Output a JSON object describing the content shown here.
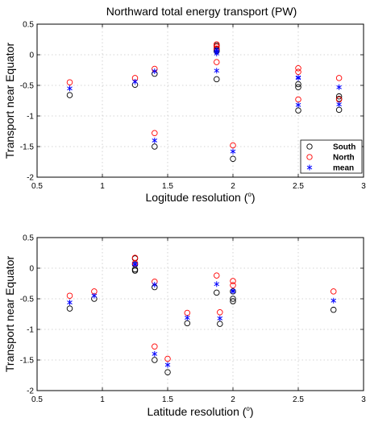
{
  "chart_data": [
    {
      "type": "scatter",
      "title": "Northward total energy transport (PW)",
      "xlabel": "Logitude resolution (",
      "xlabel_sup": "o",
      "xlabel_close": ")",
      "ylabel": "Transport near Equator",
      "xlim": [
        0.5,
        3
      ],
      "ylim": [
        -2,
        0.5
      ],
      "xticks": [
        0.5,
        1,
        1.5,
        2,
        2.5,
        3
      ],
      "yticks": [
        -2,
        -1.5,
        -1,
        -0.5,
        0,
        0.5
      ],
      "grid": true,
      "legend": {
        "position": "bottom-right",
        "entries": [
          "South",
          "North",
          "mean"
        ]
      },
      "series": [
        {
          "name": "South",
          "marker": "circle",
          "color": "#000000",
          "points": [
            [
              0.75,
              -0.66
            ],
            [
              1.25,
              -0.49
            ],
            [
              1.4,
              -0.31
            ],
            [
              1.4,
              -1.5
            ],
            [
              1.875,
              -0.4
            ],
            [
              1.875,
              0.06
            ],
            [
              1.875,
              0.09
            ],
            [
              1.875,
              0.15
            ],
            [
              2.0,
              -1.7
            ],
            [
              2.5,
              -0.48
            ],
            [
              2.5,
              -0.53
            ],
            [
              2.5,
              -0.91
            ],
            [
              2.8125,
              -0.68
            ],
            [
              2.8125,
              -0.72
            ],
            [
              2.8125,
              -0.9
            ]
          ]
        },
        {
          "name": "North",
          "marker": "circle",
          "color": "#ff0000",
          "points": [
            [
              0.75,
              -0.45
            ],
            [
              1.25,
              -0.38
            ],
            [
              1.4,
              -0.23
            ],
            [
              1.4,
              -1.28
            ],
            [
              1.875,
              -0.12
            ],
            [
              1.875,
              0.1
            ],
            [
              1.875,
              0.13
            ],
            [
              1.875,
              0.17
            ],
            [
              2.0,
              -1.48
            ],
            [
              2.5,
              -0.22
            ],
            [
              2.5,
              -0.28
            ],
            [
              2.5,
              -0.73
            ],
            [
              2.8125,
              -0.38
            ],
            [
              2.8125,
              -0.73
            ]
          ]
        },
        {
          "name": "mean",
          "marker": "asterisk",
          "color": "#0000ff",
          "points": [
            [
              0.75,
              -0.55
            ],
            [
              1.25,
              -0.44
            ],
            [
              1.4,
              -0.27
            ],
            [
              1.4,
              -1.4
            ],
            [
              1.875,
              -0.26
            ],
            [
              1.875,
              0.08
            ],
            [
              1.875,
              0.05
            ],
            [
              1.875,
              0.02
            ],
            [
              2.0,
              -1.58
            ],
            [
              2.5,
              -0.38
            ],
            [
              2.5,
              -0.37
            ],
            [
              2.5,
              -0.82
            ],
            [
              2.8125,
              -0.53
            ],
            [
              2.8125,
              -0.81
            ]
          ]
        }
      ]
    },
    {
      "type": "scatter",
      "title": "",
      "xlabel": "Latitude resolution (",
      "xlabel_sup": "o",
      "xlabel_close": ")",
      "ylabel": "Transport near Equator",
      "xlim": [
        0.5,
        3
      ],
      "ylim": [
        -2,
        0.5
      ],
      "xticks": [
        0.5,
        1,
        1.5,
        2,
        2.5,
        3
      ],
      "yticks": [
        -2,
        -1.5,
        -1,
        -0.5,
        0,
        0.5
      ],
      "grid": true,
      "series": [
        {
          "name": "South",
          "marker": "circle",
          "color": "#000000",
          "points": [
            [
              0.75,
              -0.66
            ],
            [
              0.9375,
              -0.5
            ],
            [
              1.25,
              -0.02
            ],
            [
              1.25,
              -0.04
            ],
            [
              1.25,
              0.06
            ],
            [
              1.25,
              0.16
            ],
            [
              1.4,
              -0.31
            ],
            [
              1.4,
              -1.5
            ],
            [
              1.5,
              -1.7
            ],
            [
              1.65,
              -0.9
            ],
            [
              1.875,
              -0.4
            ],
            [
              1.9,
              -0.91
            ],
            [
              2.0,
              -0.5
            ],
            [
              2.0,
              -0.54
            ],
            [
              2.0,
              -0.38
            ],
            [
              2.77,
              -0.68
            ]
          ]
        },
        {
          "name": "North",
          "marker": "circle",
          "color": "#ff0000",
          "points": [
            [
              0.75,
              -0.45
            ],
            [
              0.9375,
              -0.38
            ],
            [
              1.25,
              0.17
            ],
            [
              1.25,
              0.08
            ],
            [
              1.4,
              -0.22
            ],
            [
              1.4,
              -1.28
            ],
            [
              1.5,
              -1.48
            ],
            [
              1.65,
              -0.73
            ],
            [
              1.875,
              -0.12
            ],
            [
              1.9,
              -0.72
            ],
            [
              2.0,
              -0.21
            ],
            [
              2.0,
              -0.28
            ],
            [
              2.77,
              -0.38
            ]
          ]
        },
        {
          "name": "mean",
          "marker": "asterisk",
          "color": "#0000ff",
          "points": [
            [
              0.75,
              -0.56
            ],
            [
              0.9375,
              -0.45
            ],
            [
              1.25,
              0.07
            ],
            [
              1.25,
              0.06
            ],
            [
              1.4,
              -0.27
            ],
            [
              1.4,
              -1.4
            ],
            [
              1.5,
              -1.58
            ],
            [
              1.65,
              -0.81
            ],
            [
              1.875,
              -0.26
            ],
            [
              1.9,
              -0.82
            ],
            [
              2.0,
              -0.37
            ],
            [
              2.0,
              -0.38
            ],
            [
              2.77,
              -0.53
            ]
          ]
        }
      ]
    }
  ]
}
